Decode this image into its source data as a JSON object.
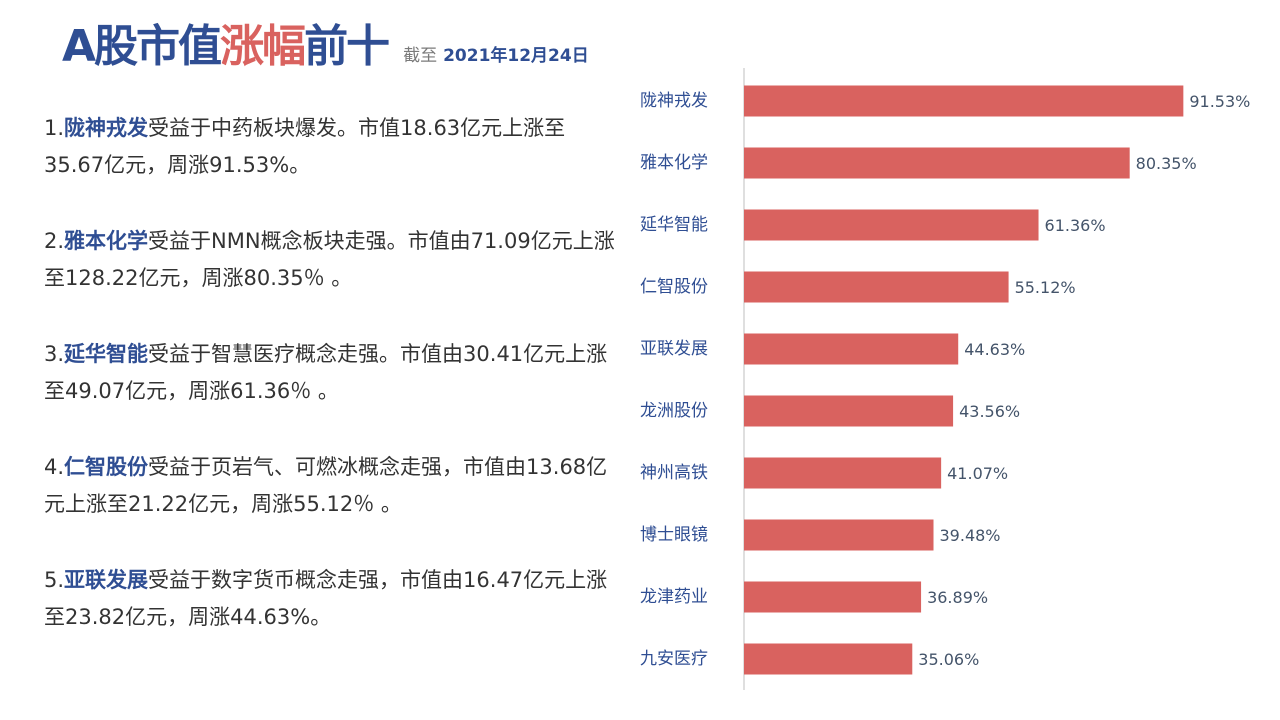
{
  "header": {
    "title_part1": "A股市值",
    "title_highlight": "涨幅",
    "title_part2": "前十",
    "date_prefix": "截至",
    "date": "2021年12月24日"
  },
  "items": [
    {
      "num": "1.",
      "name": "陇神戎发",
      "text": "受益于中药板块爆发。市值18.63亿元上涨至35.67亿元，周涨91.53%。"
    },
    {
      "num": "2.",
      "name": "雅本化学",
      "text": "受益于NMN概念板块走强。市值由71.09亿元上涨至128.22亿元，周涨80.35％ 。"
    },
    {
      "num": "3.",
      "name": "延华智能",
      "text": "受益于智慧医疗概念走强。市值由30.41亿元上涨至49.07亿元，周涨61.36％ 。"
    },
    {
      "num": "4.",
      "name": "仁智股份",
      "text": "受益于页岩气、可燃冰概念走强，市值由13.68亿元上涨至21.22亿元，周涨55.12％ 。"
    },
    {
      "num": "5.",
      "name": "亚联发展",
      "text": "受益于数字货币概念走强，市值由16.47亿元上涨至23.82亿元，周涨44.63%。"
    }
  ],
  "colors": {
    "bar": "#d9625f",
    "axis": "#bfbfbf",
    "title_blue": "#2f4e93",
    "title_red": "#d9625f"
  },
  "chart_data": {
    "type": "bar",
    "orientation": "horizontal",
    "title": "",
    "xlabel": "",
    "ylabel": "",
    "categories": [
      "陇神戎发",
      "雅本化学",
      "延华智能",
      "仁智股份",
      "亚联发展",
      "龙洲股份",
      "神州高铁",
      "博士眼镜",
      "龙津药业",
      "九安医疗"
    ],
    "values": [
      91.53,
      80.35,
      61.36,
      55.12,
      44.63,
      43.56,
      41.07,
      39.48,
      36.89,
      35.06
    ],
    "value_labels": [
      "91.53%",
      "80.35%",
      "61.36%",
      "55.12%",
      "44.63%",
      "43.56%",
      "41.07%",
      "39.48%",
      "36.89%",
      "35.06%"
    ],
    "xlim": [
      0,
      100
    ],
    "grid": false,
    "legend": "none"
  }
}
